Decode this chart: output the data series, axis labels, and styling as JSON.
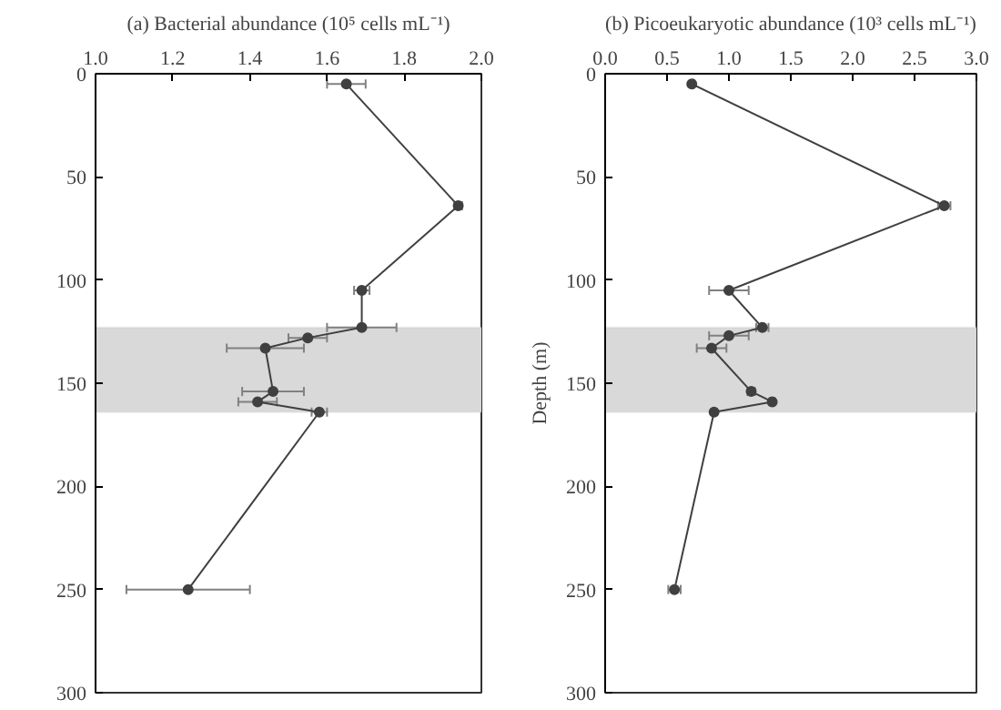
{
  "chart_data": [
    {
      "type": "line",
      "title": "(a) Bacterial abundance (10⁵ cells mL⁻¹)",
      "marker": "circle",
      "line_style": "solid",
      "color": "#404040",
      "x": [
        1.65,
        1.94,
        1.69,
        1.69,
        1.55,
        1.44,
        1.46,
        1.42,
        1.58,
        1.24
      ],
      "values": [
        5,
        64,
        105,
        123,
        128,
        133,
        154,
        159,
        164,
        250
      ],
      "xerrors": [
        0.05,
        0.01,
        0.02,
        0.09,
        0.05,
        0.1,
        0.08,
        0.05,
        0.02,
        0.16
      ],
      "xlim": [
        1.0,
        2.0
      ],
      "xticks": [
        {
          "value": 1.0,
          "label": "1.0"
        },
        {
          "value": 1.2,
          "label": "1.2"
        },
        {
          "value": 1.4,
          "label": "1.4"
        },
        {
          "value": 1.6,
          "label": "1.6"
        },
        {
          "value": 1.8,
          "label": "1.8"
        },
        {
          "value": 2.0,
          "label": "2.0"
        }
      ],
      "ylim": [
        300,
        0
      ],
      "yticks": [
        0,
        50,
        100,
        150,
        200,
        250,
        300
      ],
      "bands": [
        {
          "axis": "y",
          "from": 123,
          "to": 164,
          "color": "#d9d9d9"
        }
      ]
    },
    {
      "type": "line",
      "title": "(b) Picoeukaryotic abundance (10³ cells mL⁻¹)",
      "ylabel": "Depth (m)",
      "marker": "circle",
      "line_style": "solid",
      "color": "#404040",
      "x": [
        0.7,
        2.74,
        1.0,
        1.27,
        1.0,
        0.86,
        1.18,
        1.35,
        0.88,
        0.56
      ],
      "values": [
        5,
        64,
        105,
        123,
        127,
        133,
        154,
        159,
        164,
        250
      ],
      "xerrors": [
        null,
        0.05,
        0.16,
        0.05,
        0.16,
        0.12,
        0.03,
        0.02,
        null,
        0.05
      ],
      "xlim": [
        0.0,
        3.0
      ],
      "xticks": [
        {
          "value": 0.0,
          "label": "0.0"
        },
        {
          "value": 0.5,
          "label": "0.5"
        },
        {
          "value": 1.0,
          "label": "1.0"
        },
        {
          "value": 1.5,
          "label": "1.5"
        },
        {
          "value": 2.0,
          "label": "2.0"
        },
        {
          "value": 2.5,
          "label": "2.5"
        },
        {
          "value": 3.0,
          "label": "3.0"
        }
      ],
      "ylim": [
        300,
        0
      ],
      "yticks": [
        0,
        50,
        100,
        150,
        200,
        250,
        300
      ],
      "bands": [
        {
          "axis": "y",
          "from": 123,
          "to": 164,
          "color": "#d9d9d9"
        }
      ]
    }
  ]
}
